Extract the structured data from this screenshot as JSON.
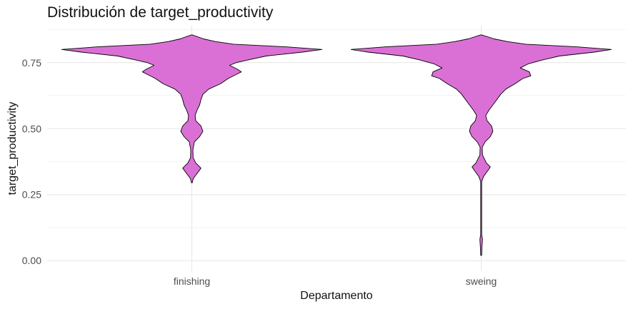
{
  "chart_data": {
    "type": "violin",
    "title": "Distribución de target_productivity",
    "xlabel": "Departamento",
    "ylabel": "target_productivity",
    "categories": [
      "finishing",
      "sweing"
    ],
    "fill_color": "#DA70D6",
    "outline_color": "#000000",
    "grid": true,
    "ylim": [
      -0.04,
      0.89
    ],
    "yticks": [
      0.0,
      0.25,
      0.5,
      0.75
    ],
    "ytick_labels": [
      "0.00",
      "0.25",
      "0.50",
      "0.75"
    ],
    "violins": [
      {
        "category": "finishing",
        "profile": [
          [
            0.295,
            0.0
          ],
          [
            0.31,
            0.01
          ],
          [
            0.33,
            0.04
          ],
          [
            0.35,
            0.07
          ],
          [
            0.37,
            0.03
          ],
          [
            0.39,
            0.01
          ],
          [
            0.42,
            0.008
          ],
          [
            0.45,
            0.02
          ],
          [
            0.47,
            0.06
          ],
          [
            0.49,
            0.085
          ],
          [
            0.51,
            0.07
          ],
          [
            0.53,
            0.03
          ],
          [
            0.55,
            0.025
          ],
          [
            0.57,
            0.04
          ],
          [
            0.59,
            0.06
          ],
          [
            0.61,
            0.07
          ],
          [
            0.63,
            0.085
          ],
          [
            0.65,
            0.13
          ],
          [
            0.67,
            0.22
          ],
          [
            0.69,
            0.28
          ],
          [
            0.705,
            0.34
          ],
          [
            0.715,
            0.38
          ],
          [
            0.725,
            0.35
          ],
          [
            0.74,
            0.29
          ],
          [
            0.75,
            0.34
          ],
          [
            0.76,
            0.43
          ],
          [
            0.775,
            0.57
          ],
          [
            0.79,
            0.85
          ],
          [
            0.8,
            1.0
          ],
          [
            0.81,
            0.72
          ],
          [
            0.82,
            0.32
          ],
          [
            0.83,
            0.18
          ],
          [
            0.84,
            0.09
          ],
          [
            0.855,
            0.0
          ]
        ]
      },
      {
        "category": "sweing",
        "profile": [
          [
            0.02,
            0.0
          ],
          [
            0.05,
            0.006
          ],
          [
            0.08,
            0.01
          ],
          [
            0.1,
            0.004
          ],
          [
            0.2,
            0.002
          ],
          [
            0.3,
            0.004
          ],
          [
            0.32,
            0.02
          ],
          [
            0.34,
            0.05
          ],
          [
            0.355,
            0.07
          ],
          [
            0.37,
            0.04
          ],
          [
            0.4,
            0.01
          ],
          [
            0.43,
            0.008
          ],
          [
            0.45,
            0.03
          ],
          [
            0.47,
            0.07
          ],
          [
            0.49,
            0.09
          ],
          [
            0.51,
            0.08
          ],
          [
            0.53,
            0.045
          ],
          [
            0.55,
            0.035
          ],
          [
            0.57,
            0.06
          ],
          [
            0.59,
            0.09
          ],
          [
            0.61,
            0.12
          ],
          [
            0.63,
            0.15
          ],
          [
            0.65,
            0.19
          ],
          [
            0.67,
            0.26
          ],
          [
            0.69,
            0.32
          ],
          [
            0.7,
            0.38
          ],
          [
            0.715,
            0.37
          ],
          [
            0.73,
            0.3
          ],
          [
            0.745,
            0.36
          ],
          [
            0.76,
            0.47
          ],
          [
            0.775,
            0.6
          ],
          [
            0.79,
            0.87
          ],
          [
            0.8,
            1.0
          ],
          [
            0.81,
            0.73
          ],
          [
            0.82,
            0.34
          ],
          [
            0.83,
            0.2
          ],
          [
            0.84,
            0.1
          ],
          [
            0.855,
            0.0
          ]
        ]
      }
    ]
  }
}
